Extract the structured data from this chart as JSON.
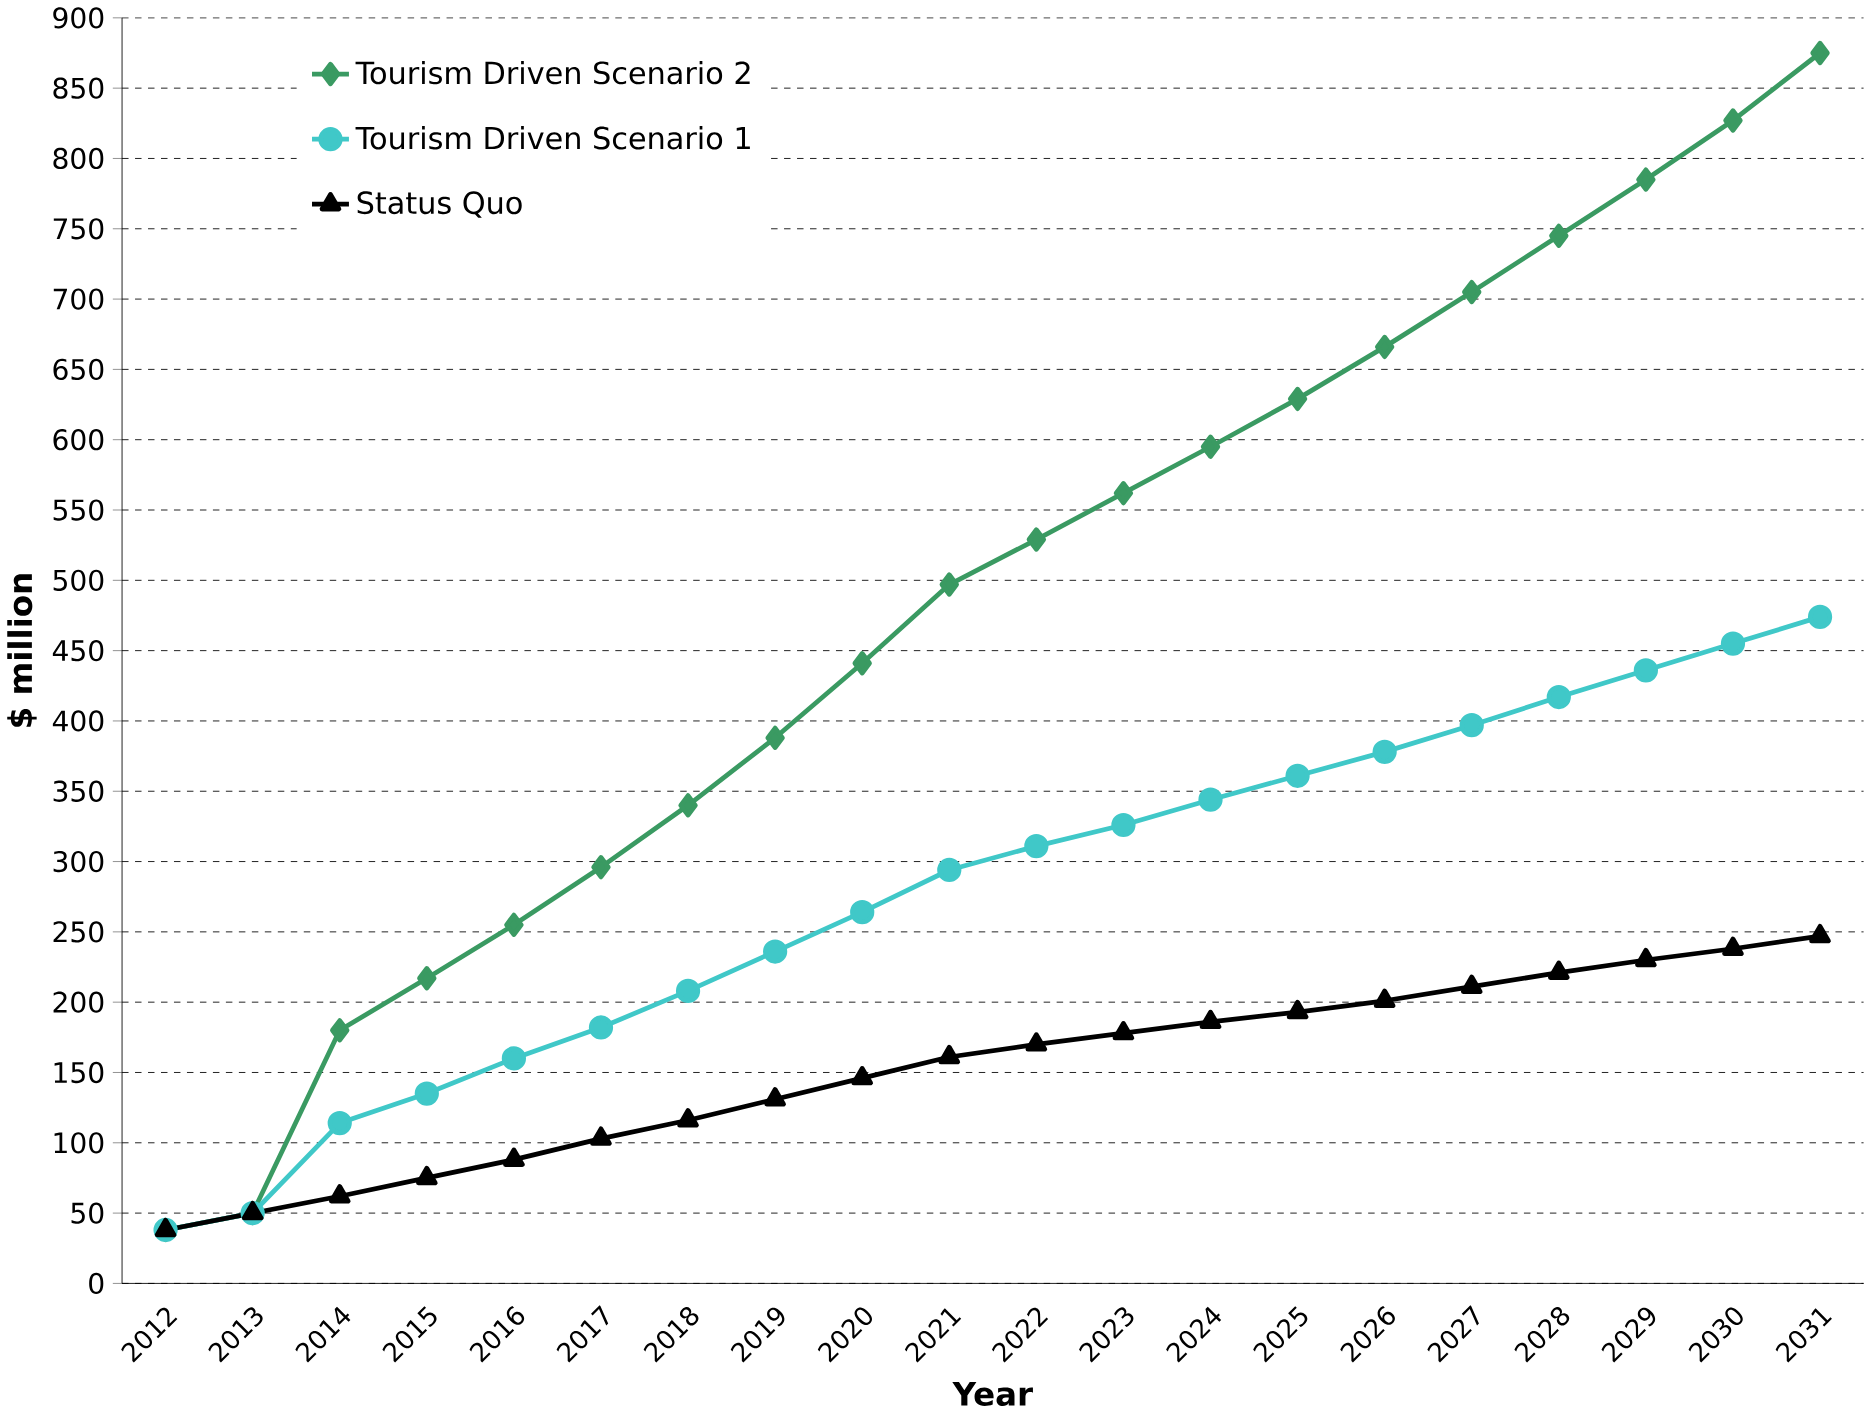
{
  "chart_data": {
    "type": "line",
    "xlabel": "Year",
    "ylabel": "$ million",
    "categories": [
      "2012",
      "2013",
      "2014",
      "2015",
      "2016",
      "2017",
      "2018",
      "2019",
      "2020",
      "2021",
      "2022",
      "2023",
      "2024",
      "2025",
      "2026",
      "2027",
      "2028",
      "2029",
      "2030",
      "2031"
    ],
    "series": [
      {
        "name": "Tourism Driven Scenario 2",
        "color": "#3a9a62",
        "marker": "diamond",
        "values": [
          38,
          50,
          180,
          217,
          255,
          296,
          340,
          388,
          441,
          497,
          529,
          562,
          595,
          629,
          666,
          705,
          745,
          785,
          827,
          875
        ]
      },
      {
        "name": "Tourism Driven Scenario 1",
        "color": "#40c8c8",
        "marker": "circle",
        "values": [
          38,
          50,
          114,
          135,
          160,
          182,
          208,
          236,
          264,
          294,
          311,
          326,
          344,
          361,
          378,
          397,
          417,
          436,
          455,
          474
        ]
      },
      {
        "name": "Status Quo",
        "color": "#000000",
        "marker": "triangle",
        "values": [
          38,
          50,
          62,
          75,
          88,
          103,
          116,
          131,
          146,
          161,
          170,
          178,
          186,
          193,
          201,
          211,
          221,
          230,
          238,
          247
        ]
      }
    ],
    "ylim": [
      0,
      900
    ],
    "yticks": [
      0,
      50,
      100,
      150,
      200,
      250,
      300,
      350,
      400,
      450,
      500,
      550,
      600,
      650,
      700,
      750,
      800,
      850,
      900
    ],
    "grid": "y",
    "legend": "top left",
    "line_style": "solid"
  }
}
